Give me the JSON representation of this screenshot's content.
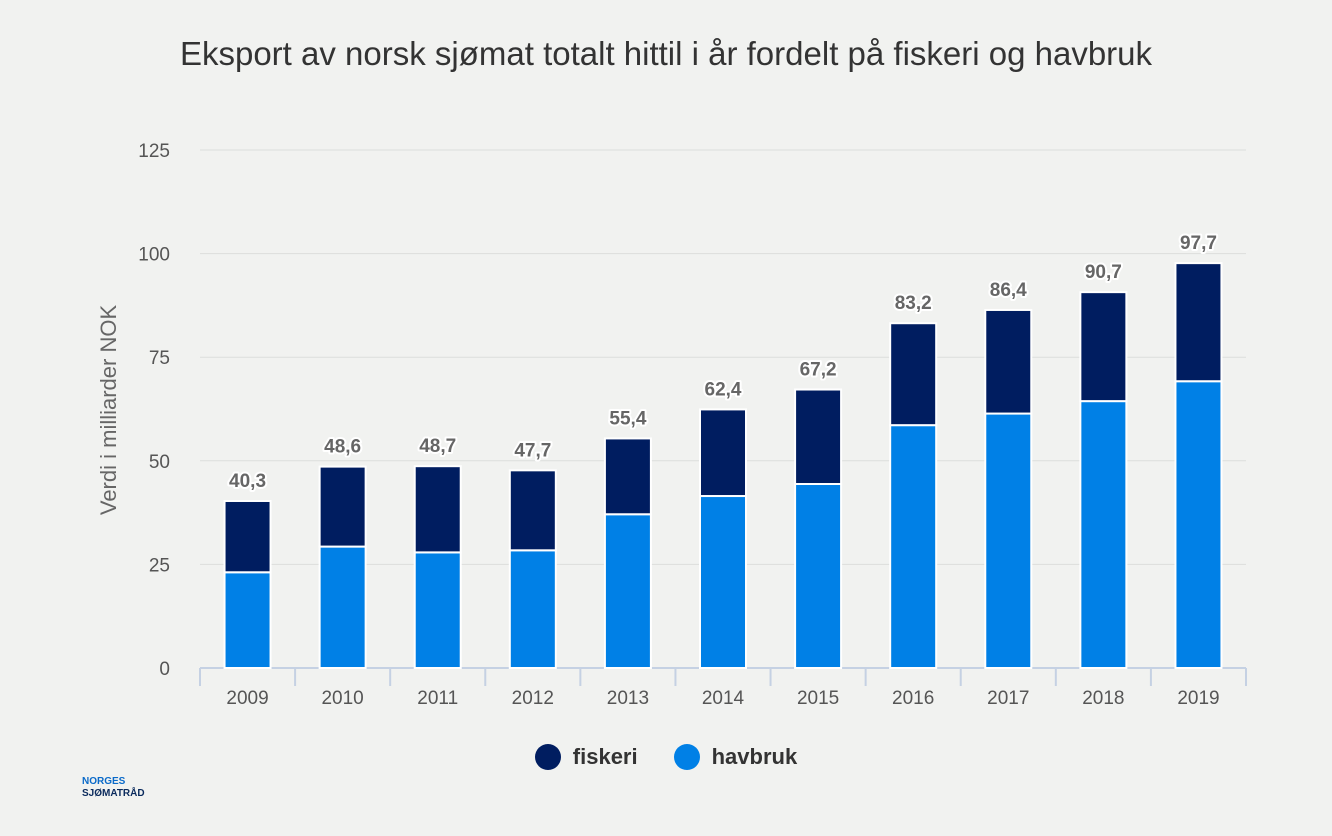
{
  "chart_data": {
    "type": "bar",
    "stacked": true,
    "title": "Eksport av norsk sjømat totalt hittil i år fordelt på fiskeri og havbruk",
    "ylabel": "Verdi i milliarder NOK",
    "xlabel": "",
    "ylim": [
      0,
      125
    ],
    "yticks": [
      0,
      25,
      50,
      75,
      100,
      125
    ],
    "categories": [
      "2009",
      "2010",
      "2011",
      "2012",
      "2013",
      "2014",
      "2015",
      "2016",
      "2017",
      "2018",
      "2019"
    ],
    "series": [
      {
        "name": "havbruk",
        "color": "#0080e6",
        "values": [
          23.1,
          29.3,
          27.9,
          28.4,
          37.1,
          41.5,
          44.4,
          58.6,
          61.4,
          64.4,
          69.2
        ]
      },
      {
        "name": "fiskeri",
        "color": "#001d60",
        "values": [
          17.2,
          19.3,
          20.8,
          19.3,
          18.3,
          20.9,
          22.8,
          24.6,
          25.0,
          26.3,
          28.5
        ]
      }
    ],
    "totals": [
      "40,3",
      "48,6",
      "48,7",
      "47,7",
      "55,4",
      "62,4",
      "67,2",
      "83,2",
      "86,4",
      "90,7",
      "97,7"
    ],
    "grid": true,
    "legend_position": "bottom-center"
  },
  "legend": {
    "fiskeri": "fiskeri",
    "havbruk": "havbruk"
  },
  "logo": {
    "line1": "NORGES",
    "line2": "SJØMATRÅD"
  }
}
